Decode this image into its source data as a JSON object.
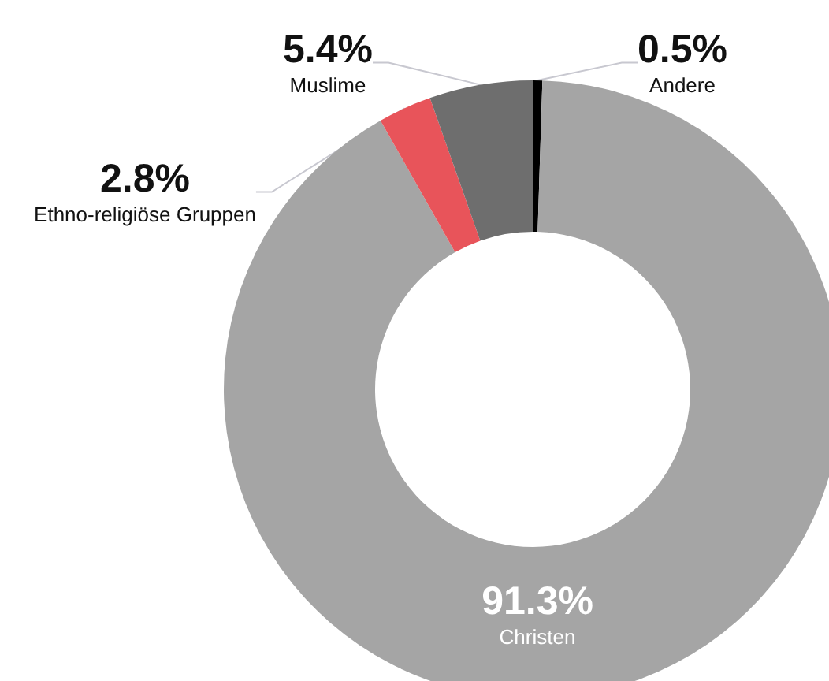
{
  "chart_data": {
    "type": "donut",
    "categories": [
      "Andere",
      "Christen",
      "Ethno-religiöse Gruppen",
      "Muslime"
    ],
    "values": [
      0.5,
      91.3,
      2.8,
      5.4
    ],
    "value_labels": [
      "0.5%",
      "91.3%",
      "2.8%",
      "5.4%"
    ],
    "colors": [
      "#000000",
      "#a5a5a5",
      "#e8545a",
      "#6e6e6e"
    ],
    "legend": false
  }
}
